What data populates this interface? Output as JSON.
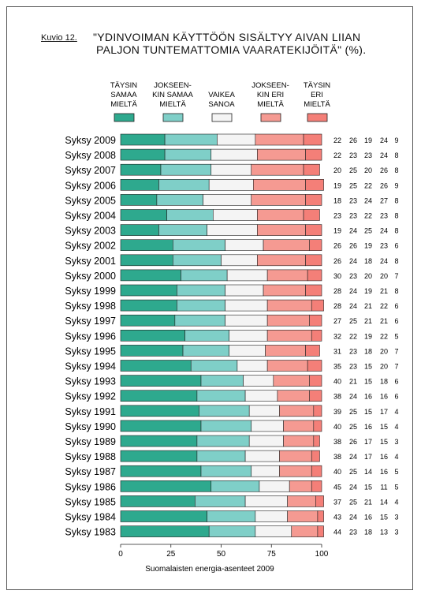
{
  "figure": {
    "label": "Kuvio 12.",
    "title_line1": "\"YDINVOIMAN KÄYTTÖÖN SISÄLTYY AIVAN LIIAN",
    "title_line2": "PALJON TUNTEMATTOMIA VAARATEKIJÖITÄ\" (%).",
    "source": "Suomalaisten energia-asenteet 2009"
  },
  "chart_data": {
    "type": "bar",
    "orientation": "horizontal",
    "stacked": true,
    "xlim": [
      0,
      100
    ],
    "x_ticks": [
      "0",
      "25",
      "50",
      "75",
      "100"
    ],
    "grid": false,
    "legend_position": "top",
    "categories": [
      "Syksy 2009",
      "Syksy 2008",
      "Syksy 2007",
      "Syksy 2006",
      "Syksy 2005",
      "Syksy 2004",
      "Syksy 2003",
      "Syksy 2002",
      "Syksy 2001",
      "Syksy 2000",
      "Syksy 1999",
      "Syksy 1998",
      "Syksy 1997",
      "Syksy 1996",
      "Syksy 1995",
      "Syksy 1994",
      "Syksy 1993",
      "Syksy 1992",
      "Syksy 1991",
      "Syksy 1990",
      "Syksy 1989",
      "Syksy 1988",
      "Syksy 1987",
      "Syksy 1986",
      "Syksy 1985",
      "Syksy 1984",
      "Syksy 1983"
    ],
    "series": [
      {
        "name": "TÄYSIN SAMAA MIELTÄ",
        "legend_lines": [
          "TÄYSIN",
          "SAMAA",
          "MIELTÄ"
        ],
        "color": "#2ea98e",
        "values": [
          22,
          22,
          20,
          19,
          18,
          23,
          19,
          26,
          26,
          30,
          28,
          28,
          27,
          32,
          31,
          35,
          40,
          38,
          39,
          40,
          38,
          38,
          40,
          45,
          37,
          43,
          44
        ]
      },
      {
        "name": "JOKSEENKIN SAMAA MIELTÄ",
        "legend_lines": [
          "JOKSEEN-",
          "KIN SAMAA",
          "MIELTÄ"
        ],
        "color": "#7fcfc8",
        "values": [
          26,
          23,
          25,
          25,
          23,
          23,
          24,
          26,
          24,
          23,
          24,
          24,
          25,
          22,
          23,
          23,
          21,
          24,
          25,
          25,
          26,
          24,
          25,
          24,
          25,
          24,
          23
        ]
      },
      {
        "name": "VAIKEA SANOA",
        "legend_lines": [
          "VAIKEA",
          "SANOA"
        ],
        "color": "#f4f4f4",
        "values": [
          19,
          23,
          20,
          22,
          24,
          22,
          25,
          19,
          18,
          20,
          19,
          21,
          21,
          19,
          18,
          15,
          15,
          16,
          15,
          16,
          17,
          17,
          14,
          15,
          21,
          16,
          18
        ]
      },
      {
        "name": "JOKSEENKIN ERI MIELTÄ",
        "legend_lines": [
          "JOKSEEN-",
          "KIN ERI",
          "MIELTÄ"
        ],
        "color": "#f59a92",
        "values": [
          24,
          24,
          26,
          26,
          27,
          23,
          24,
          23,
          24,
          20,
          21,
          22,
          21,
          22,
          20,
          20,
          18,
          16,
          17,
          15,
          15,
          16,
          16,
          11,
          14,
          15,
          13
        ]
      },
      {
        "name": "TÄYSIN ERI MIELTÄ",
        "legend_lines": [
          "TÄYSIN",
          "ERI",
          "MIELTÄ"
        ],
        "color": "#f47f78",
        "values": [
          9,
          8,
          8,
          9,
          8,
          8,
          8,
          6,
          8,
          7,
          8,
          6,
          6,
          5,
          7,
          7,
          6,
          6,
          4,
          4,
          3,
          4,
          5,
          5,
          4,
          3,
          3
        ]
      }
    ]
  }
}
